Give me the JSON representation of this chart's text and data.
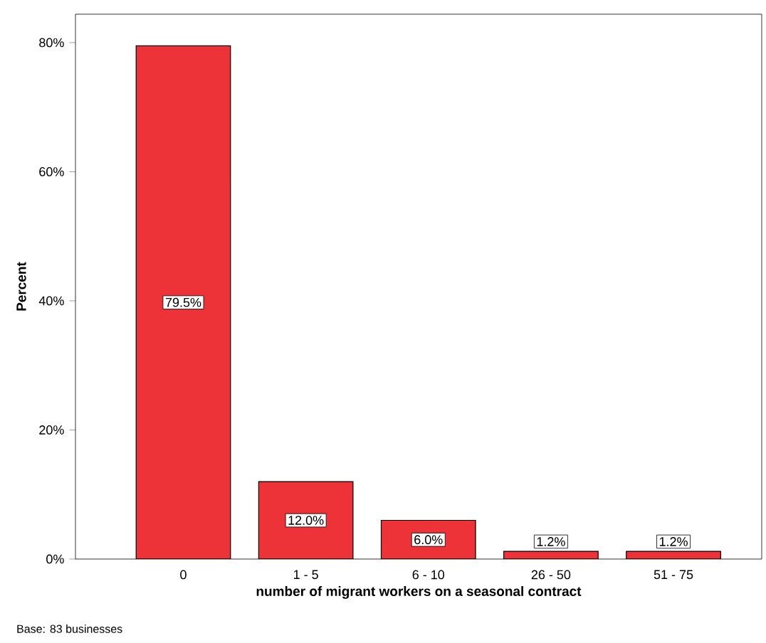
{
  "chart_data": {
    "type": "bar",
    "xlabel": "number of migrant workers on a seasonal contract",
    "ylabel": "Percent",
    "categories": [
      "0",
      "1 - 5",
      "6 - 10",
      "26 - 50",
      "51 - 75"
    ],
    "values": [
      79.5,
      12.0,
      6.0,
      1.2,
      1.2
    ],
    "value_labels": [
      "79.5%",
      "12.0%",
      "6.0%",
      "1.2%",
      "1.2%"
    ],
    "color": "#ee3338",
    "ylim": [
      0,
      84.4
    ],
    "yticks": [
      {
        "value": 0,
        "label": "0%"
      },
      {
        "value": 20,
        "label": "20%"
      },
      {
        "value": 40,
        "label": "40%"
      },
      {
        "value": 60,
        "label": "60%"
      },
      {
        "value": 80,
        "label": "80%"
      }
    ],
    "grid": false,
    "annotations": [
      "Base: 83 businesses"
    ]
  }
}
